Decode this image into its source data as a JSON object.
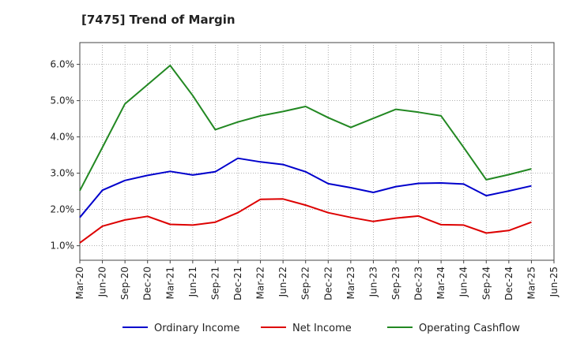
{
  "chart_data": {
    "type": "line",
    "title": "[7475]  Trend of Margin",
    "xlabel": "",
    "ylabel": "",
    "x": [
      "Mar-20",
      "Jun-20",
      "Sep-20",
      "Dec-20",
      "Mar-21",
      "Jun-21",
      "Sep-21",
      "Dec-21",
      "Mar-22",
      "Jun-22",
      "Sep-22",
      "Dec-22",
      "Mar-23",
      "Jun-23",
      "Sep-23",
      "Dec-23",
      "Mar-24",
      "Jun-24",
      "Sep-24",
      "Dec-24",
      "Mar-25",
      "Jun-25"
    ],
    "ylim": [
      0.6,
      6.6
    ],
    "yticks": [
      1.0,
      2.0,
      3.0,
      4.0,
      5.0,
      6.0
    ],
    "ytick_labels": [
      "1.0%",
      "2.0%",
      "3.0%",
      "4.0%",
      "5.0%",
      "6.0%"
    ],
    "grid": true,
    "legend_position": "bottom",
    "series": [
      {
        "name": "Ordinary Income",
        "color": "#0000cc",
        "values": [
          1.78,
          2.53,
          2.8,
          2.94,
          3.05,
          2.95,
          3.04,
          3.41,
          3.31,
          3.24,
          3.04,
          2.71,
          2.6,
          2.47,
          2.63,
          2.72,
          2.73,
          2.7,
          2.38,
          2.51,
          2.65,
          null
        ]
      },
      {
        "name": "Net Income",
        "color": "#dd0000",
        "values": [
          1.08,
          1.54,
          1.71,
          1.81,
          1.59,
          1.57,
          1.65,
          1.91,
          2.28,
          2.29,
          2.12,
          1.91,
          1.78,
          1.67,
          1.76,
          1.82,
          1.58,
          1.57,
          1.35,
          1.42,
          1.65,
          null
        ]
      },
      {
        "name": "Operating Cashflow",
        "color": "#228822",
        "values": [
          2.52,
          3.71,
          4.91,
          5.44,
          5.97,
          5.14,
          4.2,
          4.41,
          4.58,
          4.7,
          4.84,
          4.53,
          4.26,
          4.51,
          4.76,
          4.68,
          4.58,
          3.71,
          2.82,
          2.96,
          3.12,
          null
        ]
      }
    ]
  }
}
